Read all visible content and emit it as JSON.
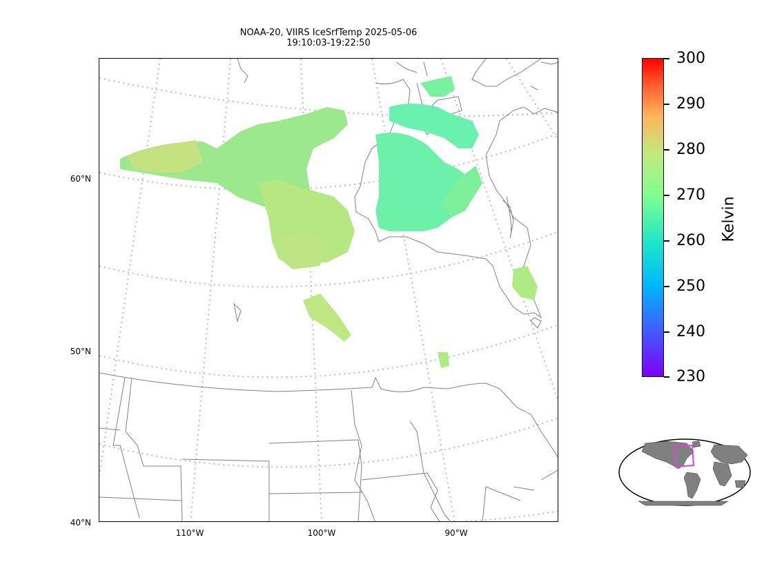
{
  "title": {
    "line1": "NOAA-20, VIIRS IceSrfTemp 2025-05-06",
    "line2": "19:10:03-19:22:50"
  },
  "map": {
    "lat_labels": [
      "60°N",
      "50°N",
      "40°N"
    ],
    "lon_labels": [
      "110°W",
      "100°W",
      "90°W"
    ],
    "coastline_color": "#808080",
    "gridline_color": "#bbbbbb"
  },
  "colorbar": {
    "label": "Kelvin",
    "ticks": [
      "300",
      "290",
      "280",
      "270",
      "260",
      "250",
      "240",
      "230"
    ],
    "min": 230,
    "max": 300,
    "colormap": "rainbow"
  },
  "inset": {
    "land_color": "#808080",
    "highlight_color": "#e040e0"
  }
}
